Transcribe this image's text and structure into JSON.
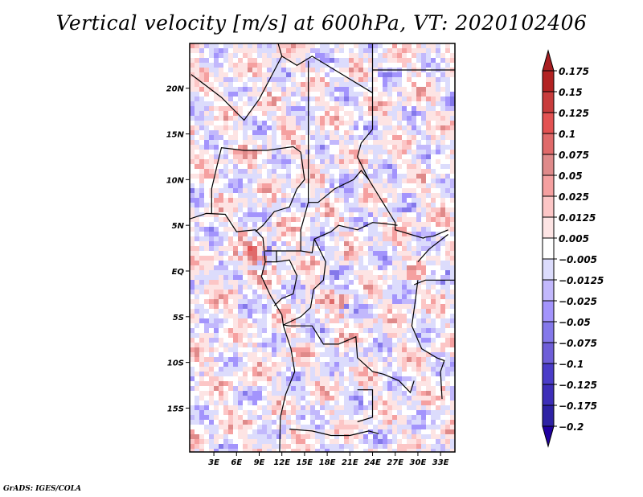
{
  "title": "Vertical velocity [m/s] at 600hPa, VT: 2020102406",
  "credit": "GrADS: IGES/COLA",
  "chart_data": {
    "type": "heatmap",
    "title": "Vertical velocity [m/s] at 600hPa, VT: 2020102406",
    "variable": "Vertical velocity",
    "units": "m/s",
    "level": "600hPa",
    "valid_time": "2020102406",
    "lon_range": [
      -0.2,
      34.9
    ],
    "lat_range": [
      -19.8,
      24.9
    ],
    "lat_ticks": [
      {
        "value": 20,
        "label": "20N"
      },
      {
        "value": 15,
        "label": "15N"
      },
      {
        "value": 10,
        "label": "10N"
      },
      {
        "value": 5,
        "label": "5N"
      },
      {
        "value": 0,
        "label": "EQ"
      },
      {
        "value": -5,
        "label": "5S"
      },
      {
        "value": -10,
        "label": "10S"
      },
      {
        "value": -15,
        "label": "15S"
      }
    ],
    "lon_ticks": [
      {
        "value": 3,
        "label": "3E"
      },
      {
        "value": 6,
        "label": "6E"
      },
      {
        "value": 9,
        "label": "9E"
      },
      {
        "value": 12,
        "label": "12E"
      },
      {
        "value": 15,
        "label": "15E"
      },
      {
        "value": 18,
        "label": "18E"
      },
      {
        "value": 21,
        "label": "21E"
      },
      {
        "value": 24,
        "label": "24E"
      },
      {
        "value": 27,
        "label": "27E"
      },
      {
        "value": 30,
        "label": "30E"
      },
      {
        "value": 33,
        "label": "33E"
      }
    ],
    "colorbar": {
      "levels": [
        {
          "label": "0.175",
          "color": "#b22222"
        },
        {
          "label": "0.15",
          "color": "#c83c3c"
        },
        {
          "label": "0.125",
          "color": "#e35252"
        },
        {
          "label": "0.1",
          "color": "#e06a6a"
        },
        {
          "label": "0.075",
          "color": "#df8a8a"
        },
        {
          "label": "0.05",
          "color": "#f5a0a0"
        },
        {
          "label": "0.025",
          "color": "#fcc6c6"
        },
        {
          "label": "0.0125",
          "color": "#fde4e4"
        },
        {
          "label": "0.005",
          "color": "#ffffff"
        },
        {
          "label": "-0.005",
          "color": "#dcdcfc"
        },
        {
          "label": "-0.0125",
          "color": "#c2b8fc"
        },
        {
          "label": "-0.025",
          "color": "#a394fc"
        },
        {
          "label": "-0.05",
          "color": "#8478ea"
        },
        {
          "label": "-0.075",
          "color": "#6e5ed8"
        },
        {
          "label": "-0.1",
          "color": "#4a3cc8"
        },
        {
          "label": "-0.125",
          "color": "#3d2eb8"
        },
        {
          "label": "-0.175",
          "color": "#2e22a4"
        },
        {
          "label": "-0.2",
          "color": ""
        }
      ],
      "top_arrow_color": "#a81e22",
      "bottom_arrow_color": "#2000a0"
    }
  }
}
